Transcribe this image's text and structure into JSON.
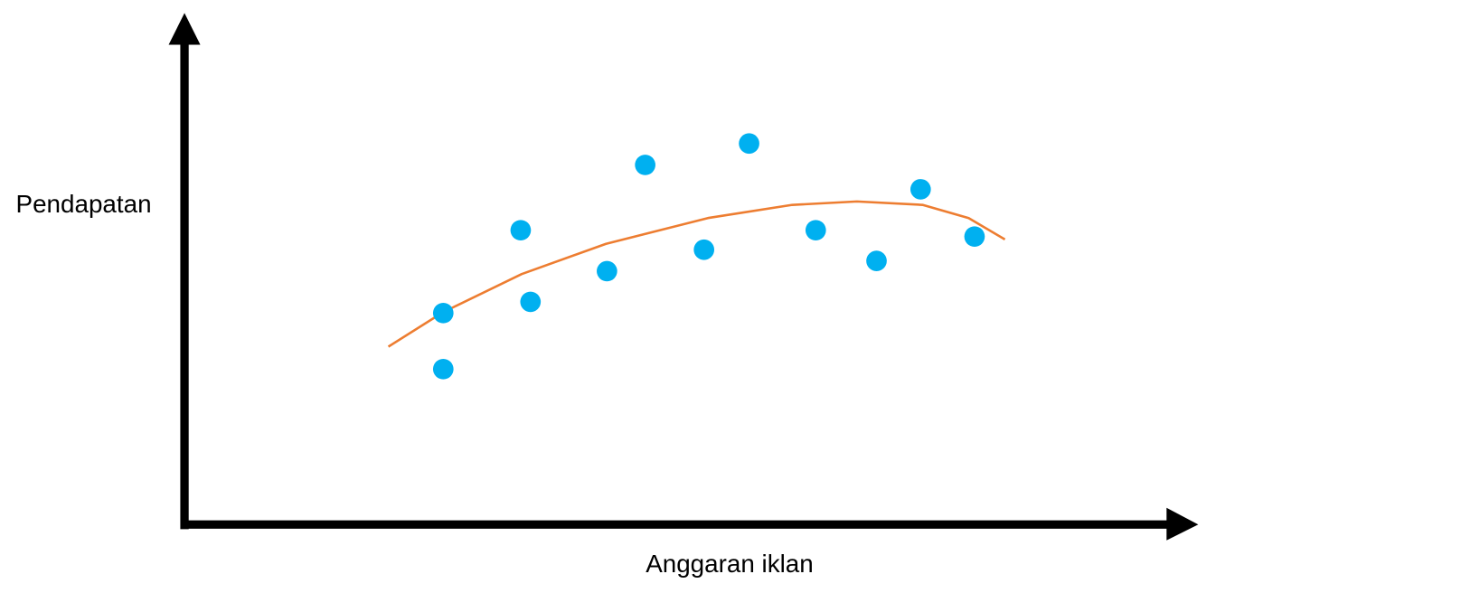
{
  "chart_data": {
    "type": "scatter",
    "x_label": "Anggaran iklan",
    "y_label": "Pendapatan",
    "xlim": [
      0,
      100
    ],
    "ylim": [
      0,
      100
    ],
    "points": {
      "color": "#00b0f0",
      "x": [
        26.4,
        26.4,
        34.3,
        35.3,
        43.1,
        47.0,
        53.0,
        57.6,
        64.4,
        70.6,
        75.1,
        80.6
      ],
      "y": [
        31.9,
        43.4,
        60.4,
        45.7,
        52.0,
        73.8,
        56.4,
        78.2,
        60.4,
        54.1,
        68.8,
        59.1
      ]
    },
    "trend": {
      "color": "#ed7d31",
      "x": [
        20.8,
        26.4,
        34.4,
        43.0,
        53.4,
        62.0,
        68.6,
        75.3,
        80.0,
        83.7
      ],
      "y": [
        36.5,
        43.6,
        51.4,
        57.6,
        62.9,
        65.6,
        66.3,
        65.6,
        62.9,
        58.5
      ]
    }
  }
}
